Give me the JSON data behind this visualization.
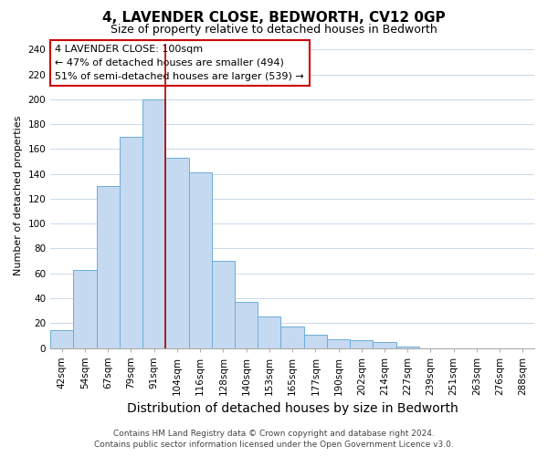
{
  "title": "4, LAVENDER CLOSE, BEDWORTH, CV12 0GP",
  "subtitle": "Size of property relative to detached houses in Bedworth",
  "xlabel": "Distribution of detached houses by size in Bedworth",
  "ylabel": "Number of detached properties",
  "bar_labels": [
    "42sqm",
    "54sqm",
    "67sqm",
    "79sqm",
    "91sqm",
    "104sqm",
    "116sqm",
    "128sqm",
    "140sqm",
    "153sqm",
    "165sqm",
    "177sqm",
    "190sqm",
    "202sqm",
    "214sqm",
    "227sqm",
    "239sqm",
    "251sqm",
    "263sqm",
    "276sqm",
    "288sqm"
  ],
  "bar_values": [
    14,
    63,
    130,
    170,
    200,
    153,
    141,
    70,
    37,
    25,
    17,
    11,
    7,
    6,
    5,
    1,
    0,
    0,
    0,
    0,
    0
  ],
  "bar_color": "#c5d9f0",
  "bar_edge_color": "#6baed6",
  "vline_color": "#aa0000",
  "ylim": [
    0,
    245
  ],
  "yticks": [
    0,
    20,
    40,
    60,
    80,
    100,
    120,
    140,
    160,
    180,
    200,
    220,
    240
  ],
  "annotation_line1": "4 LAVENDER CLOSE: 100sqm",
  "annotation_line2": "← 47% of detached houses are smaller (494)",
  "annotation_line3": "51% of semi-detached houses are larger (539) →",
  "footer_line1": "Contains HM Land Registry data © Crown copyright and database right 2024.",
  "footer_line2": "Contains public sector information licensed under the Open Government Licence v3.0.",
  "background_color": "#ffffff",
  "grid_color": "#c8d8ec",
  "title_fontsize": 11,
  "subtitle_fontsize": 9,
  "xlabel_fontsize": 9,
  "ylabel_fontsize": 8,
  "tick_fontsize": 7.5,
  "annotation_fontsize": 8,
  "footer_fontsize": 6.5
}
